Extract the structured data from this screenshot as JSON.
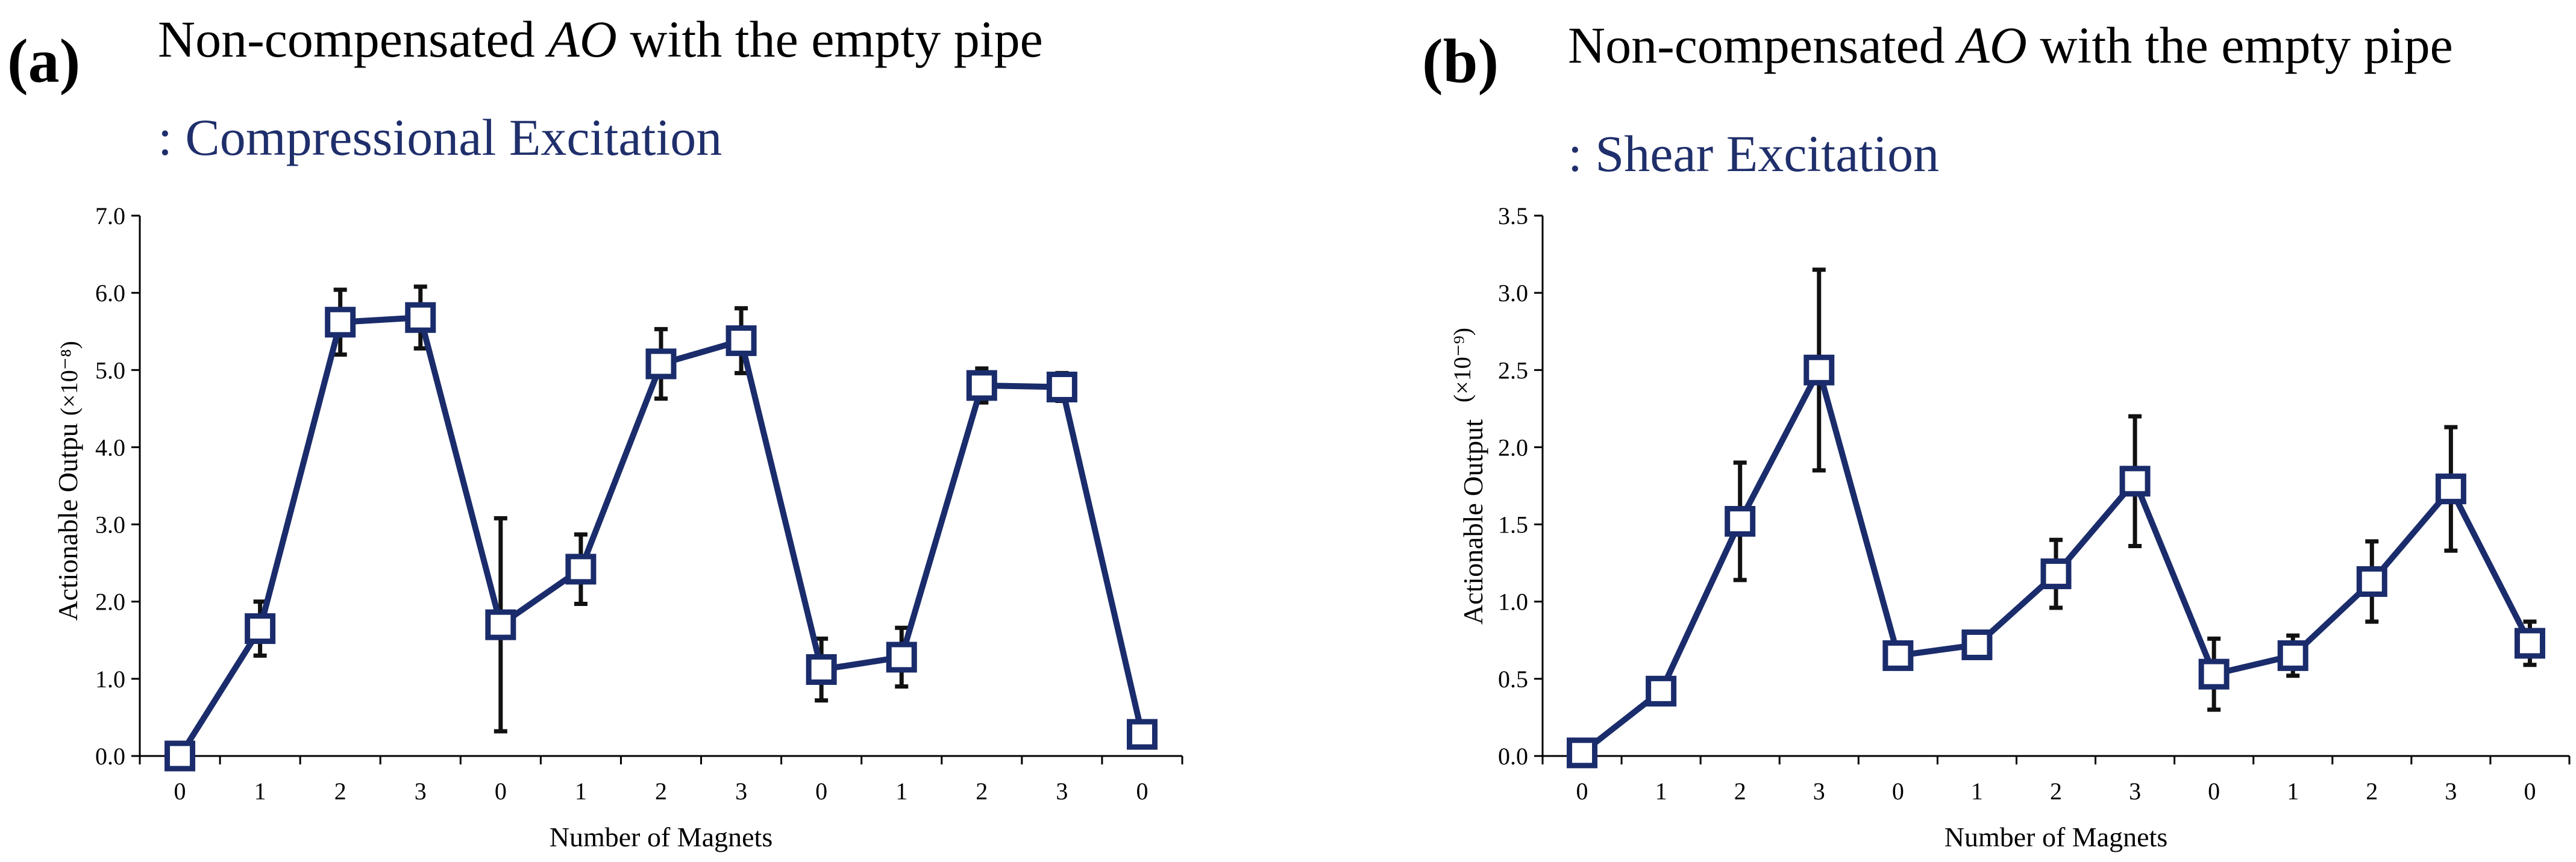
{
  "chart_data": [
    {
      "type": "line",
      "panel_label": "(a)",
      "title_prefix": "Non-compensated ",
      "title_italic": "AO",
      "title_suffix": " with the empty pipe",
      "subtitle": ": Compressional Excitation",
      "xlabel": "Number of Magnets",
      "ylabel": "Actionable Outpu",
      "unit_label": "(×10⁻⁸)",
      "categories": [
        "0",
        "1",
        "2",
        "3",
        "0",
        "1",
        "2",
        "3",
        "0",
        "1",
        "2",
        "3",
        "0"
      ],
      "values": [
        0.0,
        1.65,
        5.62,
        5.68,
        1.7,
        2.42,
        5.08,
        5.38,
        1.12,
        1.28,
        4.8,
        4.78,
        0.28
      ],
      "errors": [
        0.0,
        0.35,
        0.42,
        0.4,
        1.38,
        0.45,
        0.45,
        0.42,
        0.4,
        0.38,
        0.22,
        0.18,
        0.1
      ],
      "yticks": [
        "0.0",
        "1.0",
        "2.0",
        "3.0",
        "4.0",
        "5.0",
        "6.0",
        "7.0"
      ],
      "ylim": [
        0,
        7
      ],
      "colors": {
        "line": "#1a2c6b",
        "marker": "#1a2c6b",
        "error": "#111111",
        "axis": "#000000"
      }
    },
    {
      "type": "line",
      "panel_label": "(b)",
      "title_prefix": "Non-compensated ",
      "title_italic": "AO",
      "title_suffix": " with the empty pipe",
      "subtitle": ": Shear Excitation",
      "xlabel": "Number of Magnets",
      "ylabel": "Actionable Output",
      "unit_label": "(×10⁻⁹)",
      "categories": [
        "0",
        "1",
        "2",
        "3",
        "0",
        "1",
        "2",
        "3",
        "0",
        "1",
        "2",
        "3",
        "0"
      ],
      "values": [
        0.02,
        0.42,
        1.52,
        2.5,
        0.65,
        0.72,
        1.18,
        1.78,
        0.53,
        0.65,
        1.13,
        1.73,
        0.73
      ],
      "errors": [
        0.0,
        0.05,
        0.38,
        0.65,
        0.06,
        0.05,
        0.22,
        0.42,
        0.23,
        0.13,
        0.26,
        0.4,
        0.14
      ],
      "yticks": [
        "0.0",
        "0.5",
        "1.0",
        "1.5",
        "2.0",
        "2.5",
        "3.0",
        "3.5"
      ],
      "ylim": [
        0,
        3.5
      ],
      "colors": {
        "line": "#1a2c6b",
        "marker": "#1a2c6b",
        "error": "#111111",
        "axis": "#000000"
      }
    }
  ]
}
